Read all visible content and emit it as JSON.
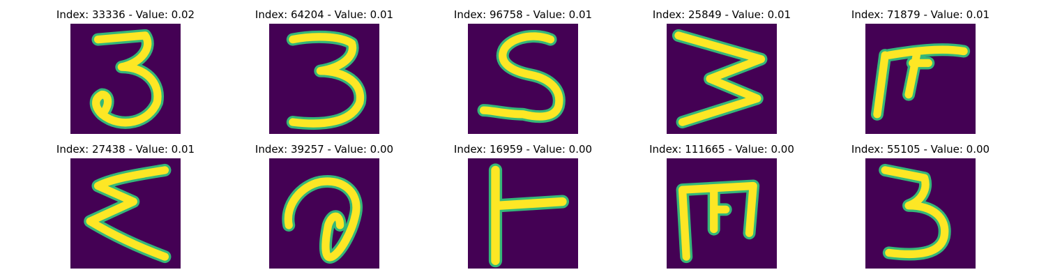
{
  "colormap": {
    "background": "#440154",
    "mid": "#21918c",
    "edge": "#35b779",
    "stroke": "#fde725"
  },
  "samples": [
    {
      "title": "Index: 33336 - Value: 0.02",
      "index": 33336,
      "value": 0.02,
      "glyph": "3"
    },
    {
      "title": "Index: 64204 - Value: 0.01",
      "index": 64204,
      "value": 0.01,
      "glyph": "3"
    },
    {
      "title": "Index: 96758 - Value: 0.01",
      "index": 96758,
      "value": 0.01,
      "glyph": "S"
    },
    {
      "title": "Index: 25849 - Value: 0.01",
      "index": 25849,
      "value": 0.01,
      "glyph": "W"
    },
    {
      "title": "Index: 71879 - Value: 0.01",
      "index": 71879,
      "value": 0.01,
      "glyph": "pi"
    },
    {
      "title": "Index: 27438 - Value: 0.01",
      "index": 27438,
      "value": 0.01,
      "glyph": "sigma"
    },
    {
      "title": "Index: 39257 - Value: 0.00",
      "index": 39257,
      "value": 0.0,
      "glyph": "a"
    },
    {
      "title": "Index: 16959 - Value: 0.00",
      "index": 16959,
      "value": 0.0,
      "glyph": "T"
    },
    {
      "title": "Index: 111665 - Value: 0.00",
      "index": 111665,
      "value": 0.0,
      "glyph": "m"
    },
    {
      "title": "Index: 55105 - Value: 0.00",
      "index": 55105,
      "value": 0.0,
      "glyph": "3"
    }
  ]
}
